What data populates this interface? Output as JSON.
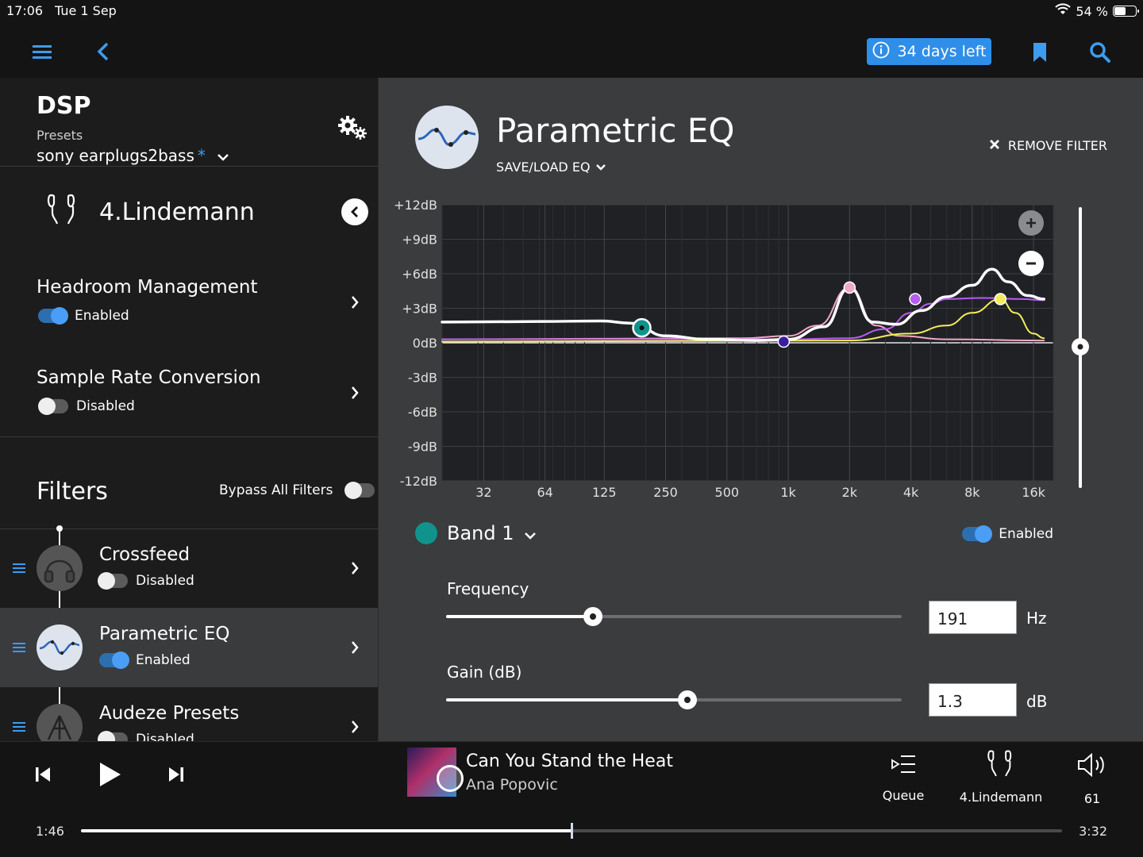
{
  "status": {
    "time": "17:06",
    "date": "Tue 1 Sep",
    "battery": "54 %",
    "battery_level": 0.54
  },
  "toolbar": {
    "trial_label": "34 days left"
  },
  "sidebar": {
    "dsp_title": "DSP",
    "presets_label": "Presets",
    "preset_name": "sony earplugs2bass",
    "preset_modified": "*",
    "device_name": "4.Lindemann",
    "headroom": {
      "title": "Headroom Management",
      "state": "Enabled",
      "enabled": true
    },
    "src": {
      "title": "Sample Rate Conversion",
      "state": "Disabled",
      "enabled": false
    },
    "filters_title": "Filters",
    "bypass_label": "Bypass All Filters",
    "bypass_enabled": false,
    "filters": [
      {
        "title": "Crossfeed",
        "state": "Disabled",
        "enabled": false
      },
      {
        "title": "Parametric EQ",
        "state": "Enabled",
        "enabled": true
      },
      {
        "title": "Audeze Presets",
        "state": "Disabled",
        "enabled": false
      }
    ]
  },
  "main": {
    "title": "Parametric EQ",
    "save_load": "SAVE/LOAD EQ",
    "remove_filter": "REMOVE FILTER",
    "band_label": "Band 1",
    "band_state": "Enabled",
    "band_color": "#10938d",
    "frequency": {
      "label": "Frequency",
      "value": "191",
      "unit": "Hz",
      "slider_fraction": 0.323
    },
    "gain": {
      "label": "Gain (dB)",
      "value": "1.3",
      "unit": "dB",
      "slider_fraction": 0.529
    },
    "preamp_db": 0
  },
  "chart_data": {
    "type": "line",
    "x_scale": "log",
    "x_ticks": [
      "32",
      "64",
      "125",
      "250",
      "500",
      "1k",
      "2k",
      "4k",
      "8k",
      "16k"
    ],
    "x_tick_values": [
      32,
      64,
      125,
      250,
      500,
      1000,
      2000,
      4000,
      8000,
      16000
    ],
    "y_ticks": [
      "+12dB",
      "+9dB",
      "+6dB",
      "+3dB",
      "0dB",
      "-3dB",
      "-6dB",
      "-9dB",
      "-12dB"
    ],
    "ylim": [
      -12,
      12
    ],
    "grid": true,
    "bands": [
      {
        "freq": 191,
        "gain": 1.3,
        "color": "#10938d"
      },
      {
        "freq": 950,
        "gain": 0.1,
        "color": "#3a1fa0"
      },
      {
        "freq": 2000,
        "gain": 4.8,
        "color": "#f2a6c8"
      },
      {
        "freq": 4200,
        "gain": 3.8,
        "color": "#b75cf2"
      },
      {
        "freq": 11000,
        "gain": 3.8,
        "color": "#f2ec5c"
      }
    ],
    "series": [
      {
        "color": "#ffffff",
        "x": [
          20,
          60,
          120,
          170,
          250,
          400,
          700,
          1000,
          1500,
          2000,
          2600,
          3400,
          4500,
          6000,
          8000,
          10000,
          12000,
          15000,
          18000
        ],
        "y": [
          1.8,
          1.85,
          1.9,
          1.7,
          0.6,
          0.3,
          0.2,
          0.3,
          1.4,
          4.8,
          1.8,
          1.6,
          2.8,
          4.0,
          5.0,
          6.4,
          5.3,
          4.1,
          3.8
        ]
      },
      {
        "color": "#f2a6c8",
        "x": [
          20,
          600,
          1000,
          1400,
          2000,
          2700,
          3500,
          6000,
          18000
        ],
        "y": [
          0.3,
          0.4,
          0.6,
          1.5,
          4.8,
          1.5,
          0.6,
          0.3,
          0.2
        ]
      },
      {
        "color": "#b75cf2",
        "x": [
          20,
          1000,
          2000,
          3000,
          4000,
          5000,
          6000,
          9000,
          14000,
          18000
        ],
        "y": [
          0.3,
          0.3,
          0.4,
          1.2,
          2.6,
          3.4,
          3.8,
          3.9,
          3.8,
          3.7
        ]
      },
      {
        "color": "#f2ec5c",
        "x": [
          20,
          2000,
          4000,
          6000,
          8000,
          11000,
          13000,
          16000,
          18000
        ],
        "y": [
          0.1,
          0.2,
          0.8,
          1.5,
          2.6,
          3.8,
          2.6,
          0.8,
          0.4
        ]
      }
    ]
  },
  "player": {
    "song": "Can You Stand the Heat",
    "artist": "Ana Popovic",
    "queue_label": "Queue",
    "device_label": "4.Lindemann",
    "volume": "61",
    "elapsed": "1:46",
    "total": "3:32",
    "progress_fraction": 0.5
  }
}
